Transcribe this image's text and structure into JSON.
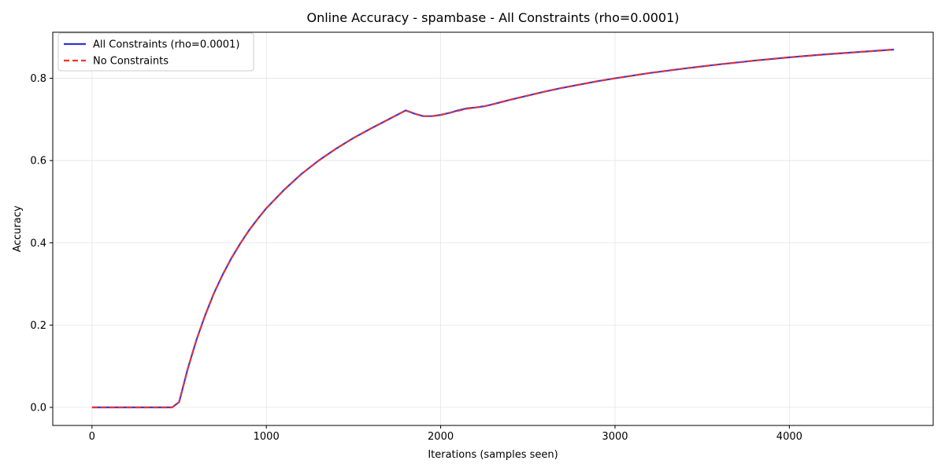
{
  "chart_data": {
    "type": "line",
    "title": "Online Accuracy - spambase - All Constraints (rho=0.0001)",
    "xlabel": "Iterations (samples seen)",
    "ylabel": "Accuracy",
    "xlim": [
      -225,
      4825
    ],
    "ylim": [
      -0.044,
      0.912
    ],
    "x_ticks": [
      0,
      1000,
      2000,
      3000,
      4000
    ],
    "y_ticks": [
      0.0,
      0.2,
      0.4,
      0.6,
      0.8
    ],
    "x_tick_labels": [
      "0",
      "1000",
      "2000",
      "3000",
      "4000"
    ],
    "y_tick_labels": [
      "0.0",
      "0.2",
      "0.4",
      "0.6",
      "0.8"
    ],
    "grid": true,
    "legend_position": "top-left",
    "series": [
      {
        "name": "All Constraints (rho=0.0001)",
        "color": "#3333cc",
        "style": "solid",
        "x": [
          0,
          100,
          200,
          300,
          400,
          460,
          500,
          550,
          600,
          650,
          700,
          750,
          800,
          850,
          900,
          950,
          1000,
          1100,
          1200,
          1300,
          1400,
          1500,
          1600,
          1700,
          1800,
          1850,
          1900,
          1950,
          2000,
          2050,
          2100,
          2150,
          2200,
          2250,
          2300,
          2400,
          2500,
          2600,
          2700,
          2800,
          2900,
          3000,
          3200,
          3400,
          3600,
          3800,
          4000,
          4200,
          4400,
          4600
        ],
        "y": [
          0.0,
          0.0,
          0.0,
          0.0,
          0.0,
          0.0,
          0.013,
          0.095,
          0.165,
          0.225,
          0.278,
          0.323,
          0.363,
          0.398,
          0.43,
          0.458,
          0.484,
          0.528,
          0.567,
          0.6,
          0.629,
          0.655,
          0.678,
          0.7,
          0.722,
          0.714,
          0.708,
          0.708,
          0.711,
          0.716,
          0.722,
          0.727,
          0.729,
          0.732,
          0.737,
          0.748,
          0.758,
          0.768,
          0.777,
          0.785,
          0.793,
          0.8,
          0.813,
          0.824,
          0.834,
          0.843,
          0.851,
          0.858,
          0.864,
          0.87
        ]
      },
      {
        "name": "No Constraints",
        "color": "#ee3333",
        "style": "dashed",
        "x": [
          0,
          100,
          200,
          300,
          400,
          460,
          500,
          550,
          600,
          650,
          700,
          750,
          800,
          850,
          900,
          950,
          1000,
          1100,
          1200,
          1300,
          1400,
          1500,
          1600,
          1700,
          1800,
          1850,
          1900,
          1950,
          2000,
          2050,
          2100,
          2150,
          2200,
          2250,
          2300,
          2400,
          2500,
          2600,
          2700,
          2800,
          2900,
          3000,
          3200,
          3400,
          3600,
          3800,
          4000,
          4200,
          4400,
          4600
        ],
        "y": [
          0.0,
          0.0,
          0.0,
          0.0,
          0.0,
          0.0,
          0.013,
          0.095,
          0.165,
          0.225,
          0.278,
          0.323,
          0.363,
          0.398,
          0.43,
          0.458,
          0.484,
          0.528,
          0.567,
          0.6,
          0.629,
          0.655,
          0.678,
          0.7,
          0.722,
          0.714,
          0.708,
          0.708,
          0.711,
          0.716,
          0.721,
          0.726,
          0.729,
          0.732,
          0.737,
          0.748,
          0.758,
          0.768,
          0.777,
          0.785,
          0.793,
          0.8,
          0.813,
          0.824,
          0.834,
          0.843,
          0.851,
          0.858,
          0.864,
          0.87
        ]
      }
    ]
  }
}
